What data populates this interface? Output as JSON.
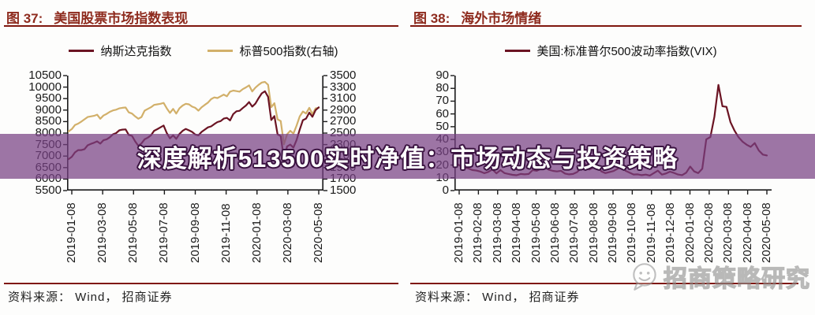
{
  "colors": {
    "header_text": "#8e2b1e",
    "header_rule": "#7f170e",
    "axis": "#1a1a1a",
    "band": "rgba(119,64,131,0.72)",
    "overlay_text": "#ffffff",
    "overlay_outline": "#3a1240",
    "source_text": "#222222",
    "watermark_gray": "#909090",
    "nasdaq_line": "#6b1423",
    "sp500_line": "#d2b06a",
    "vix_line": "#6b1423"
  },
  "overlay": {
    "text": "深度解析513500实时净值：市场动态与投资策略"
  },
  "watermark": {
    "text": "招商策略研究",
    "icon": "wechat-bubble-smiley-icon"
  },
  "chart_data": [
    {
      "type": "line",
      "fig_label": "图 37:",
      "title": "美国股票市场指数表现",
      "grid": false,
      "legend_position": "top",
      "source": "资料来源：  Wind，  招商证券",
      "x_labels": [
        "2019-01-08",
        "2019-03-08",
        "2019-05-08",
        "2019-07-08",
        "2019-09-08",
        "2019-11-08",
        "2020-01-08",
        "2020-03-08",
        "2020-05-08"
      ],
      "y_axes": {
        "left": {
          "min": 5500,
          "max": 10500,
          "ticks": [
            "10500",
            "10000",
            "9500",
            "9000",
            "8500",
            "8000",
            "7500",
            "7000",
            "6500",
            "6000",
            "5500"
          ]
        },
        "right": {
          "min": 1500,
          "max": 3500,
          "ticks": [
            "3500",
            "3300",
            "3100",
            "2900",
            "2700",
            "2500",
            "2300",
            "2100",
            "1900",
            "1700",
            "1500"
          ]
        }
      },
      "series": [
        {
          "name": "纳斯达克指数",
          "axis": "left",
          "color": "#6b1423",
          "values": [
            6870,
            6970,
            7160,
            7260,
            7260,
            7300,
            7470,
            7530,
            7580,
            7640,
            7540,
            7690,
            7730,
            7820,
            7950,
            8000,
            8120,
            8150,
            8160,
            7920,
            7880,
            7640,
            7450,
            7550,
            7730,
            7800,
            7900,
            8100,
            8170,
            8250,
            8330,
            8000,
            7770,
            7900,
            7750,
            7960,
            8100,
            8180,
            8120,
            8050,
            7940,
            7900,
            8050,
            8150,
            8250,
            8290,
            8390,
            8480,
            8520,
            8630,
            8660,
            8550,
            8830,
            8950,
            8970,
            9090,
            9200,
            9350,
            9150,
            9280,
            9520,
            9730,
            9820,
            9580,
            8570,
            8740,
            7950,
            7870,
            6880,
            7420,
            7500,
            7370,
            7700,
            8150,
            8560,
            8630,
            8890,
            8710,
            9000,
            9120
          ]
        },
        {
          "name": "标普500指数(右轴)",
          "axis": "right",
          "color": "#d2b06a",
          "values": [
            2530,
            2570,
            2640,
            2665,
            2700,
            2740,
            2780,
            2790,
            2800,
            2820,
            2750,
            2805,
            2834,
            2870,
            2895,
            2907,
            2930,
            2940,
            2945,
            2860,
            2840,
            2790,
            2750,
            2780,
            2890,
            2920,
            2950,
            2990,
            3000,
            3010,
            3025,
            2930,
            2850,
            2920,
            2840,
            2930,
            2980,
            3010,
            3000,
            2960,
            2940,
            2890,
            2950,
            2990,
            3030,
            3090,
            3120,
            3110,
            3140,
            3170,
            3140,
            3220,
            3240,
            3230,
            3220,
            3265,
            3295,
            3330,
            3225,
            3290,
            3340,
            3380,
            3390,
            3340,
            2950,
            3020,
            2740,
            2710,
            2305,
            2480,
            2540,
            2490,
            2630,
            2790,
            2875,
            2840,
            2940,
            2830,
            2930,
            2940
          ]
        }
      ]
    },
    {
      "type": "line",
      "fig_label": "图 38:",
      "title": "海外市场情绪",
      "grid": false,
      "legend_position": "top",
      "source": "资料来源：  Wind，  招商证券",
      "x_labels": [
        "2019-01-08",
        "2019-02-08",
        "2019-03-08",
        "2019-04-08",
        "2019-05-08",
        "2019-06-08",
        "2019-07-08",
        "2019-08-08",
        "2019-09-08",
        "2019-10-08",
        "2019-11-08",
        "2019-12-08",
        "2020-01-08",
        "2020-02-08",
        "2020-03-08",
        "2020-04-08",
        "2020-05-08"
      ],
      "y_axes": {
        "left": {
          "min": 0,
          "max": 90,
          "ticks": [
            "90",
            "80",
            "70",
            "60",
            "50",
            "40",
            "30",
            "20",
            "10",
            "0"
          ]
        }
      },
      "series": [
        {
          "name": "美国:标准普尔500波动率指数(VIX)",
          "axis": "left",
          "color": "#6b1423",
          "values": [
            21.4,
            19.5,
            18.2,
            17.4,
            16.1,
            15.7,
            14.9,
            13.6,
            14.6,
            16.5,
            13.5,
            16.0,
            13.7,
            13.0,
            12.3,
            12.0,
            13.0,
            12.7,
            13.0,
            16.0,
            15.5,
            17.0,
            18.7,
            16.3,
            15.4,
            15.0,
            15.5,
            13.3,
            12.7,
            13.0,
            14.5,
            17.6,
            21.0,
            16.5,
            18.0,
            19.9,
            15.0,
            13.7,
            14.5,
            15.3,
            17.0,
            19.0,
            15.5,
            14.0,
            12.6,
            12.7,
            12.1,
            12.5,
            11.8,
            13.7,
            15.6,
            12.5,
            13.4,
            14.8,
            13.8,
            12.6,
            12.1,
            14.0,
            18.8,
            15.0,
            13.7,
            17.1,
            40.1,
            41.9,
            57.8,
            82.7,
            66.0,
            65.5,
            53.5,
            46.8,
            41.7,
            38.2,
            35.9,
            34.2,
            37.2,
            31.4,
            28.2,
            27.5
          ]
        }
      ]
    }
  ]
}
